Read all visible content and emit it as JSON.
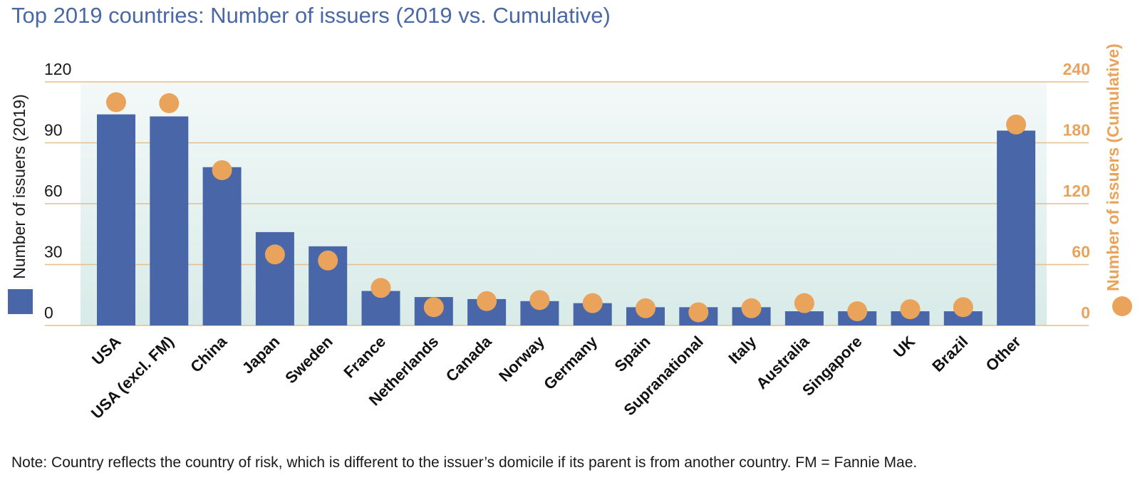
{
  "chart_data": {
    "type": "bar",
    "title": "Top 2019 countries: Number of issuers (2019 vs. Cumulative)",
    "categories": [
      "USA",
      "USA (excl. FM)",
      "China",
      "Japan",
      "Sweden",
      "France",
      "Netherlands",
      "Canada",
      "Norway",
      "Germany",
      "Spain",
      "Supranational",
      "Italy",
      "Australia",
      "Singapore",
      "UK",
      "Brazil",
      "Other"
    ],
    "series": [
      {
        "name": "Number of issuers (2019)",
        "type": "bar",
        "axis": "left",
        "color": "#4967a8",
        "values": [
          104,
          103,
          78,
          46,
          39,
          17,
          14,
          13,
          12,
          11,
          9,
          9,
          9,
          7,
          7,
          7,
          7,
          96
        ]
      },
      {
        "name": "Number of issuers (Cumulative)",
        "type": "scatter",
        "axis": "right",
        "color": "#e9a35a",
        "values": [
          220,
          219,
          153,
          70,
          64,
          37,
          18,
          24,
          25,
          22,
          17,
          13,
          17,
          22,
          14,
          16,
          18,
          198
        ]
      }
    ],
    "yleft": {
      "label": "Number of issuers (2019)",
      "ticks": [
        "0",
        "30",
        "60",
        "90",
        "120"
      ],
      "lim": [
        0,
        120
      ]
    },
    "yright": {
      "label": "Number of issuers (Cumulative)",
      "ticks": [
        "0",
        "60",
        "120",
        "180",
        "240"
      ],
      "lim": [
        0,
        240
      ]
    },
    "grid": true,
    "legend": "axis-titles"
  },
  "note": "Note: Country reflects the country of risk, which is different to the issuer’s domicile if its parent is from another country. FM = Fannie Mae."
}
